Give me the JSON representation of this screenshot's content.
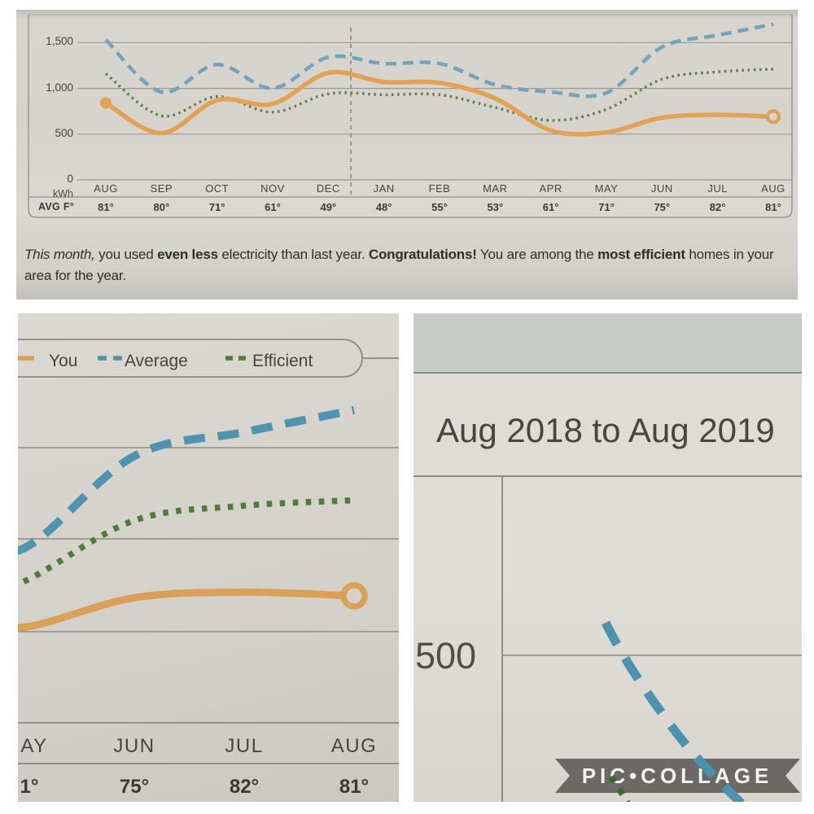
{
  "meta": {
    "watermark": "PIC•COLLAGE"
  },
  "panels": {
    "top": {
      "y_axis": {
        "unit": "kWh",
        "tick_labels": [
          "1,500",
          "1,000",
          "500",
          "0"
        ],
        "tick_values": [
          1500,
          1000,
          500,
          0
        ]
      },
      "temp_row_label": "AVG F°",
      "message_line1": [
        [
          "This month,",
          "i"
        ],
        [
          " you used ",
          "n"
        ],
        [
          "even less",
          "b"
        ],
        [
          " electricity than last year. ",
          "n"
        ],
        [
          "Congratulations!",
          "b"
        ],
        [
          " You are among the ",
          "n"
        ],
        [
          "most efficient",
          "b"
        ],
        [
          " homes in your",
          "n"
        ]
      ],
      "message_line2": [
        [
          "area for the year.",
          "n"
        ]
      ]
    },
    "bottom_left": {
      "legend": [
        {
          "label": "You",
          "color": "#dba058",
          "style": "solid"
        },
        {
          "label": "Average",
          "color": "#4f93ae",
          "style": "dashed"
        },
        {
          "label": "Efficient",
          "color": "#4f7c39",
          "style": "dotted"
        }
      ],
      "months_shown": [
        "AY",
        "JUN",
        "JUL",
        "AUG"
      ],
      "temps_shown": [
        "1°",
        "75°",
        "82°",
        "81°"
      ]
    },
    "bottom_right": {
      "title": "Aug 2018 to Aug 2019",
      "ytick_label": "500"
    }
  },
  "chart_data": [
    {
      "id": "annual-electricity-usage",
      "type": "line",
      "title": "Aug 2018 to Aug 2019",
      "ylabel": "kWh",
      "ylim": [
        0,
        1800
      ],
      "yticks": [
        0,
        500,
        1000,
        1500
      ],
      "grid": true,
      "legend_position": "top",
      "categories": [
        "AUG",
        "SEP",
        "OCT",
        "NOV",
        "DEC",
        "JAN",
        "FEB",
        "MAR",
        "APR",
        "MAY",
        "JUN",
        "JUL",
        "AUG"
      ],
      "avg_temp_f": [
        "81°",
        "80°",
        "71°",
        "61°",
        "49°",
        "48°",
        "55°",
        "53°",
        "61°",
        "71°",
        "75°",
        "82°",
        "81°"
      ],
      "series": [
        {
          "name": "You",
          "style": "solid",
          "color": "#e1a256",
          "values": [
            840,
            510,
            870,
            830,
            1170,
            1070,
            1060,
            890,
            540,
            520,
            680,
            710,
            690
          ],
          "start_marker": "filled-dot",
          "end_marker": "open-dot"
        },
        {
          "name": "Average",
          "style": "dashed",
          "color": "#74a3bd",
          "values": [
            1530,
            960,
            1260,
            1000,
            1340,
            1270,
            1270,
            1040,
            960,
            950,
            1450,
            1580,
            1700
          ]
        },
        {
          "name": "Efficient",
          "style": "dotted",
          "color": "#5c8143",
          "values": [
            1160,
            700,
            910,
            740,
            940,
            930,
            930,
            790,
            650,
            770,
            1100,
            1180,
            1210
          ]
        }
      ],
      "annotations": {
        "year_divider_between": [
          "DEC",
          "JAN"
        ]
      }
    },
    {
      "id": "closeup-legend-and-summer-months",
      "type": "line",
      "note": "photo close-up of the same chart, MAY–AUG region, with legend pill",
      "categories": [
        "MAY",
        "JUN",
        "JUL",
        "AUG"
      ],
      "series": [
        {
          "name": "You",
          "values": [
            520,
            680,
            710,
            690
          ]
        },
        {
          "name": "Average",
          "values": [
            950,
            1450,
            1580,
            1700
          ]
        },
        {
          "name": "Efficient",
          "values": [
            770,
            1100,
            1180,
            1210
          ]
        }
      ]
    },
    {
      "id": "closeup-title-and-500-gridline",
      "type": "line",
      "note": "photo close-up of chart title area with 500 kWh gridline and Average line",
      "title": "Aug 2018 to Aug 2019",
      "visible_tick": 500
    }
  ]
}
